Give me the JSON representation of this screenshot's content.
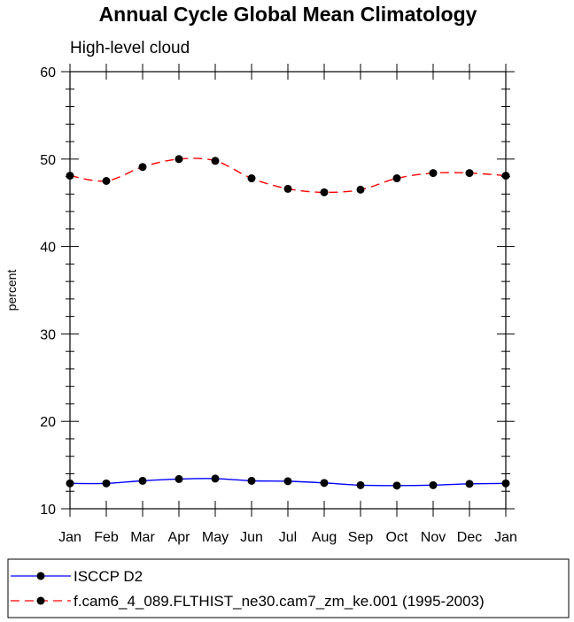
{
  "chart_data": {
    "type": "line",
    "title": "Annual Cycle Global Mean Climatology",
    "subtitle": "High-level cloud",
    "xlabel": "",
    "ylabel": "percent",
    "ylim": [
      10,
      60
    ],
    "yticks": [
      10,
      20,
      30,
      40,
      50,
      60
    ],
    "categories": [
      "Jan",
      "Feb",
      "Mar",
      "Apr",
      "May",
      "Jun",
      "Jul",
      "Aug",
      "Sep",
      "Oct",
      "Nov",
      "Dec",
      "Jan"
    ],
    "grid": false,
    "legend_position": "bottom",
    "series": [
      {
        "name": "ISCCP D2",
        "color": "#0000ff",
        "line_style": "solid",
        "marker": "filled-circle",
        "values": [
          12.9,
          12.9,
          13.2,
          13.4,
          13.45,
          13.2,
          13.15,
          12.95,
          12.7,
          12.65,
          12.7,
          12.85,
          12.9
        ]
      },
      {
        "name": "f.cam6_4_089.FLTHIST_ne30.cam7_zm_ke.001 (1995-2003)",
        "color": "#ff0000",
        "line_style": "dashed",
        "marker": "filled-circle",
        "values": [
          48.1,
          47.5,
          49.1,
          50.0,
          49.8,
          47.8,
          46.6,
          46.2,
          46.5,
          47.8,
          48.4,
          48.4,
          48.1
        ]
      }
    ]
  }
}
